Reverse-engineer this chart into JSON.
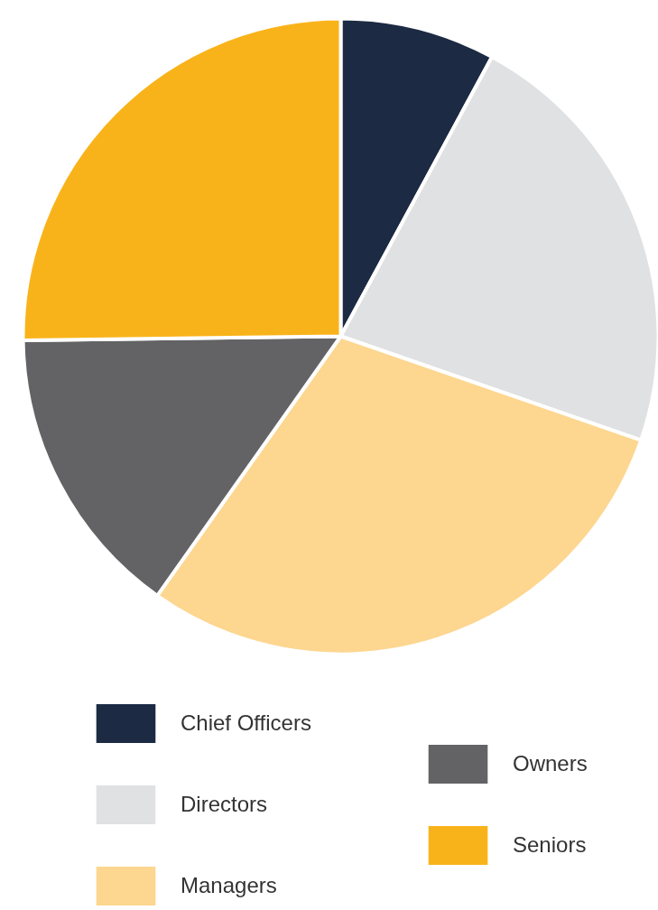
{
  "chart_data": {
    "type": "pie",
    "categories": [
      "Chief Officers",
      "Directors",
      "Managers",
      "Owners",
      "Seniors"
    ],
    "values": [
      7.9,
      22.4,
      29.5,
      15.0,
      25.2
    ],
    "colors": [
      "#1c2a43",
      "#e0e1e3",
      "#fdd690",
      "#636365",
      "#f9b31a"
    ],
    "legend": "bottom"
  }
}
